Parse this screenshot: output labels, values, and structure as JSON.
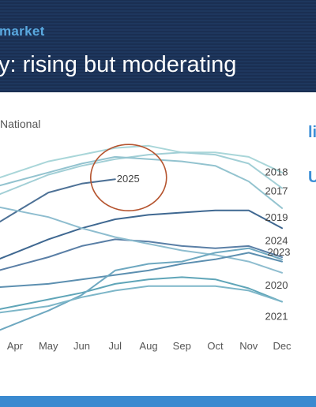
{
  "header": {
    "section": "market",
    "headline": "y: rising but moderating"
  },
  "side": {
    "text_1": "li",
    "text_2": "U"
  },
  "colors": {
    "header_bg": "#1b3358",
    "section_text": "#5aa9e0",
    "side_text": "#3d8fd6",
    "footer_bar": "#3a8ad0",
    "highlight_circle": "#b5542f"
  },
  "chart_data": {
    "type": "line",
    "subtitle": "National",
    "categories": [
      "Apr",
      "May",
      "Jun",
      "Jul",
      "Aug",
      "Sep",
      "Oct",
      "Nov",
      "Dec"
    ],
    "annotation": {
      "label": "2025",
      "series": "2025",
      "circled": true
    },
    "series": [
      {
        "name": "2018",
        "color": "#a9d6d9",
        "values": [
          7.7,
          8.2,
          8.5,
          8.8,
          8.9,
          8.6,
          8.6,
          8.4,
          7.7
        ]
      },
      {
        "name": "2017",
        "color": "#a2cfd6",
        "values": [
          7.0,
          7.6,
          8.0,
          8.3,
          8.5,
          8.6,
          8.5,
          8.1,
          7.0
        ]
      },
      {
        "name": "2019",
        "color": "#93c3cf",
        "values": [
          7.3,
          7.7,
          8.1,
          8.4,
          8.3,
          8.2,
          8.0,
          7.3,
          6.1
        ]
      },
      {
        "name": "2025",
        "color": "#4d7196",
        "values": [
          5.9,
          6.8,
          7.2,
          7.4,
          null,
          null,
          null,
          null,
          null
        ]
      },
      {
        "name": "2024",
        "color": "#3f6891",
        "values": [
          4.1,
          4.7,
          5.2,
          5.6,
          5.8,
          5.9,
          6.0,
          6.0,
          5.2
        ]
      },
      {
        "name": "2023",
        "color": "#5a7fa6",
        "values": [
          3.5,
          3.9,
          4.4,
          4.7,
          4.6,
          4.4,
          4.3,
          4.4,
          3.9
        ]
      },
      {
        "name": "2020",
        "color": "#8ebdcf",
        "values": [
          6.0,
          5.7,
          5.2,
          4.8,
          4.5,
          4.2,
          4.0,
          3.7,
          3.2
        ]
      },
      {
        "name": "2021",
        "color": "#5fa5b8",
        "values": [
          1.7,
          2.0,
          2.3,
          2.7,
          2.9,
          3.0,
          2.9,
          2.5,
          1.9
        ]
      },
      {
        "name": "",
        "color": "#5c8fb0",
        "values": [
          2.6,
          2.7,
          2.9,
          3.1,
          3.3,
          3.6,
          3.8,
          4.1,
          3.7
        ]
      },
      {
        "name": "",
        "color": "#6ea8c0",
        "values": [
          0.9,
          1.5,
          2.2,
          3.3,
          3.6,
          3.7,
          4.1,
          4.3,
          3.8
        ]
      },
      {
        "name": "",
        "color": "#7db6c8",
        "values": [
          1.5,
          1.7,
          2.1,
          2.4,
          2.6,
          2.6,
          2.6,
          2.4,
          1.9
        ]
      }
    ]
  }
}
